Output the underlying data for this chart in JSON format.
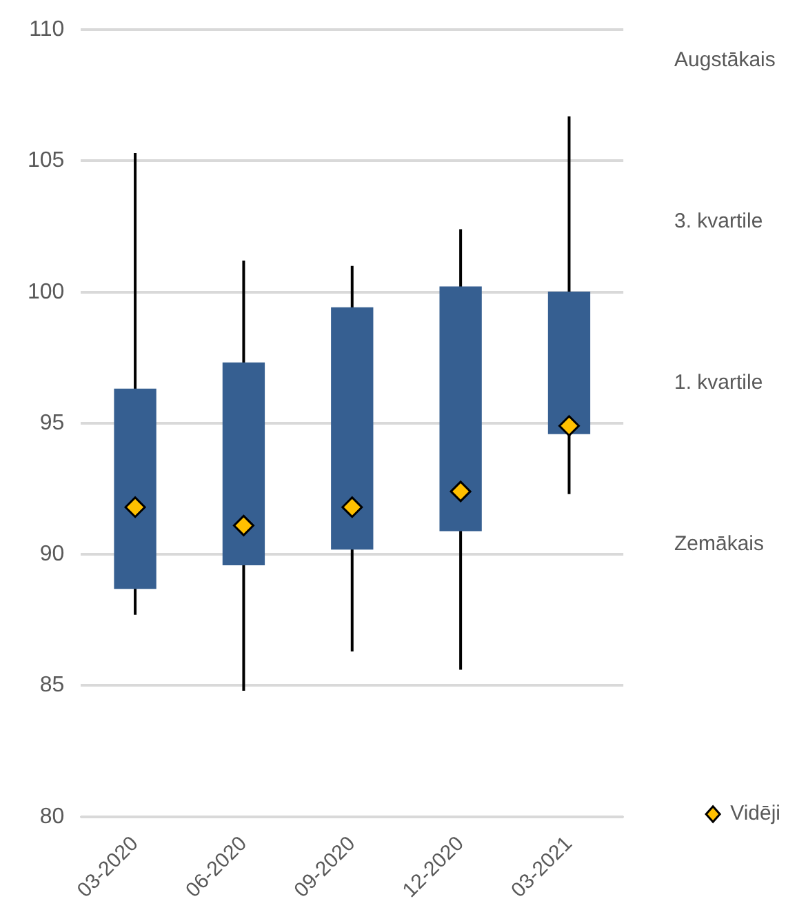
{
  "chart_data": {
    "type": "box",
    "categories": [
      "03-2020",
      "06-2020",
      "09-2020",
      "12-2020",
      "03-2021"
    ],
    "ylim": [
      80,
      110
    ],
    "yticks": [
      80,
      85,
      90,
      95,
      100,
      105,
      110
    ],
    "grid": "y",
    "legend": "right",
    "annotations": [
      "Augstākais",
      "3. kvartile",
      "1. kvartile",
      "Zemākais"
    ],
    "series": [
      {
        "color": "#365f91",
        "boxes": [
          {
            "low": 87.7,
            "q1": 88.7,
            "q3": 96.3,
            "high": 105.3
          },
          {
            "low": 84.8,
            "q1": 89.6,
            "q3": 97.3,
            "high": 101.2
          },
          {
            "low": 86.3,
            "q1": 90.2,
            "q3": 99.4,
            "high": 101.0
          },
          {
            "low": 85.6,
            "q1": 90.9,
            "q3": 100.2,
            "high": 102.4
          },
          {
            "low": 92.3,
            "q1": 94.6,
            "q3": 100.0,
            "high": 106.7
          }
        ]
      },
      {
        "type": "scatter",
        "name": "Vidēji",
        "color": "#ffc000",
        "marker": "diamond",
        "x": [
          "03-2020",
          "06-2020",
          "09-2020",
          "12-2020",
          "03-2021"
        ],
        "values": [
          91.8,
          91.1,
          91.8,
          92.4,
          94.9
        ]
      }
    ]
  }
}
